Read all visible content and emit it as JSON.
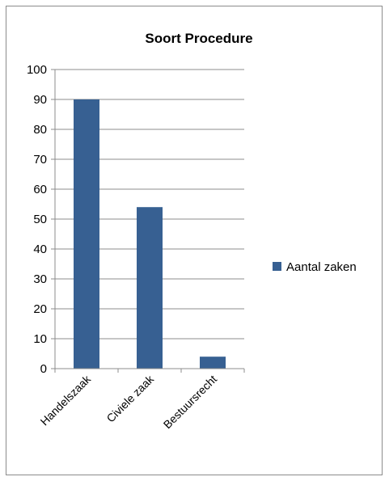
{
  "chart_data": {
    "type": "bar",
    "title": "Soort Procedure",
    "categories": [
      "Handelszaak",
      "Civiele zaak",
      "Bestuursrecht"
    ],
    "series": [
      {
        "name": "Aantal zaken",
        "values": [
          90,
          54,
          4
        ],
        "color": "#376092"
      }
    ],
    "ylim": [
      0,
      100
    ],
    "yticks": [
      "0",
      "10",
      "20",
      "30",
      "40",
      "50",
      "60",
      "70",
      "80",
      "90",
      "100"
    ],
    "grid": true,
    "legend_position": "right"
  }
}
